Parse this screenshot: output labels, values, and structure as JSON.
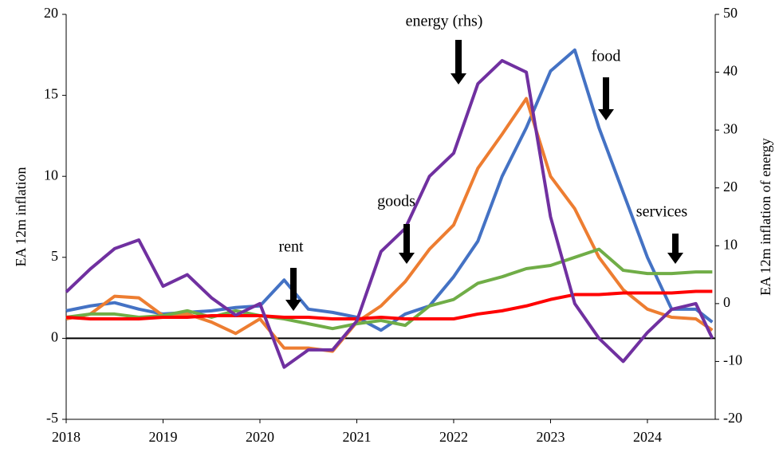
{
  "chart_data": {
    "type": "line",
    "x": [
      2018,
      2018.25,
      2018.5,
      2018.75,
      2019,
      2019.25,
      2019.5,
      2019.75,
      2020,
      2020.25,
      2020.5,
      2020.75,
      2021,
      2021.25,
      2021.5,
      2021.75,
      2022,
      2022.25,
      2022.5,
      2022.75,
      2023,
      2023.25,
      2023.5,
      2023.75,
      2024,
      2024.25,
      2024.5,
      2024.67
    ],
    "xlim": [
      2018,
      2024.7
    ],
    "xticks": [
      2018,
      2019,
      2020,
      2021,
      2022,
      2023,
      2024
    ],
    "ylim": [
      -5,
      20
    ],
    "yticks": [
      -5,
      0,
      5,
      10,
      15,
      20
    ],
    "y2lim": [
      -20,
      50
    ],
    "y2ticks": [
      -20,
      -10,
      0,
      10,
      20,
      30,
      40,
      50
    ],
    "ylabel": "EA 12m inflation",
    "y2label": "EA 12m inflation of energy",
    "grid": false,
    "series": [
      {
        "name": "food",
        "color": "#4472c4",
        "values": [
          1.7,
          2.0,
          2.2,
          1.8,
          1.5,
          1.6,
          1.7,
          1.9,
          2.0,
          3.6,
          1.8,
          1.6,
          1.3,
          0.5,
          1.5,
          2.0,
          3.8,
          6.0,
          10.0,
          13.0,
          16.5,
          17.8,
          13.0,
          9.0,
          5.0,
          1.8,
          1.8,
          1.0
        ]
      },
      {
        "name": "goods",
        "color": "#ed7d31",
        "values": [
          1.2,
          1.5,
          2.6,
          2.5,
          1.4,
          1.5,
          1.0,
          0.3,
          1.2,
          -0.6,
          -0.6,
          -0.8,
          1.0,
          2.0,
          3.5,
          5.5,
          7.0,
          10.5,
          12.6,
          14.8,
          10.0,
          8.0,
          5.0,
          3.0,
          1.8,
          1.3,
          1.2,
          0.5
        ]
      },
      {
        "name": "services",
        "color": "#70ad47",
        "values": [
          1.3,
          1.5,
          1.5,
          1.3,
          1.4,
          1.7,
          1.3,
          1.7,
          1.4,
          1.2,
          0.9,
          0.6,
          0.9,
          1.1,
          0.8,
          2.0,
          2.4,
          3.4,
          3.8,
          4.3,
          4.5,
          5.0,
          5.5,
          4.2,
          4.0,
          4.0,
          4.1,
          4.1
        ]
      },
      {
        "name": "rent",
        "color": "#ff0000",
        "values": [
          1.3,
          1.2,
          1.2,
          1.2,
          1.3,
          1.3,
          1.4,
          1.4,
          1.4,
          1.3,
          1.3,
          1.2,
          1.2,
          1.3,
          1.2,
          1.2,
          1.2,
          1.5,
          1.7,
          2.0,
          2.4,
          2.7,
          2.7,
          2.8,
          2.8,
          2.8,
          2.9,
          2.9
        ]
      },
      {
        "name": "energy (rhs)",
        "color": "#7030a0",
        "axis": "y2",
        "values": [
          2,
          6,
          9.5,
          11,
          3,
          5,
          1,
          -2,
          0,
          -11,
          -8,
          -8,
          -3,
          9,
          13,
          22,
          26,
          38,
          42,
          40,
          15,
          0,
          -6,
          -10,
          -5,
          -1,
          0,
          -6
        ]
      }
    ]
  }
}
